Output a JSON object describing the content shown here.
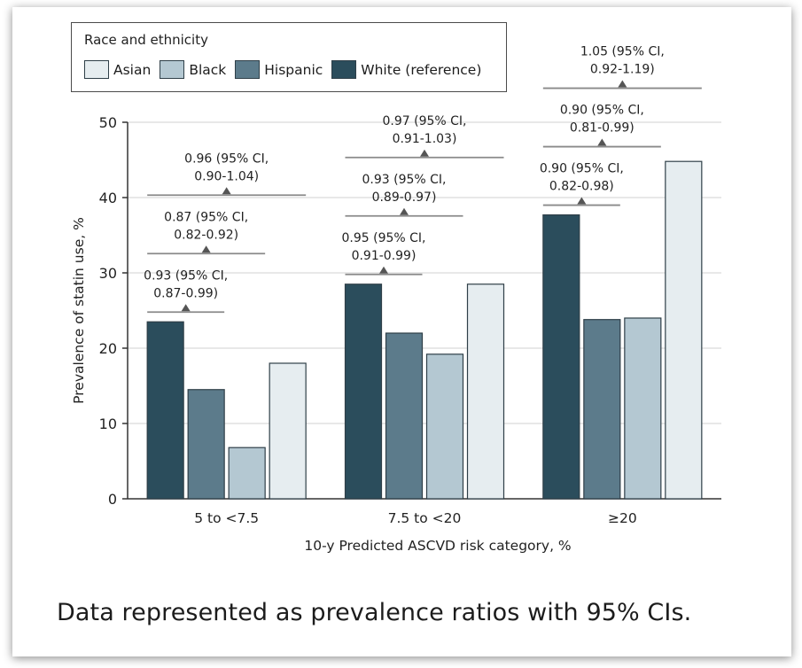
{
  "caption": "Data represented as prevalence ratios with 95% CIs.",
  "chart_data": {
    "type": "bar",
    "title": "",
    "xlabel": "10-y Predicted ASCVD risk category, %",
    "ylabel": "Prevalence of statin use, %",
    "ylim": [
      0,
      50
    ],
    "yticks": [
      0,
      10,
      20,
      30,
      40,
      50
    ],
    "grid": true,
    "legend": {
      "title": "Race and ethnicity",
      "placement": "top-left",
      "entries": [
        "Asian",
        "Black",
        "Hispanic",
        "White (reference)"
      ]
    },
    "categories": [
      "5 to <7.5",
      "7.5 to <20",
      "≥20"
    ],
    "series": [
      {
        "name": "White (reference)",
        "color": "#2b4d5c",
        "values": [
          23.5,
          28.5,
          37.7
        ]
      },
      {
        "name": "Hispanic",
        "color": "#5c7b8b",
        "values": [
          14.5,
          22.0,
          23.8
        ]
      },
      {
        "name": "Black",
        "color": "#b4c8d2",
        "values": [
          6.8,
          19.2,
          24.0
        ]
      },
      {
        "name": "Asian",
        "color": "#e6edf0",
        "values": [
          18.0,
          28.5,
          44.8
        ]
      }
    ],
    "annotations": [
      [
        {
          "compare": "Hispanic",
          "line1": "0.93 (95% CI,",
          "line2": "0.87-0.99)"
        },
        {
          "compare": "Black",
          "line1": "0.87 (95% CI,",
          "line2": "0.82-0.92)"
        },
        {
          "compare": "Asian",
          "line1": "0.96 (95% CI,",
          "line2": "0.90-1.04)"
        }
      ],
      [
        {
          "compare": "Hispanic",
          "line1": "0.95 (95% CI,",
          "line2": "0.91-0.99)"
        },
        {
          "compare": "Black",
          "line1": "0.93 (95% CI,",
          "line2": "0.89-0.97)"
        },
        {
          "compare": "Asian",
          "line1": "0.97 (95% CI,",
          "line2": "0.91-1.03)"
        }
      ],
      [
        {
          "compare": "Hispanic",
          "line1": "0.90 (95% CI,",
          "line2": "0.82-0.98)"
        },
        {
          "compare": "Black",
          "line1": "0.90 (95% CI,",
          "line2": "0.81-0.99)"
        },
        {
          "compare": "Asian",
          "line1": "1.05 (95% CI,",
          "line2": "0.92-1.19)"
        }
      ]
    ]
  }
}
